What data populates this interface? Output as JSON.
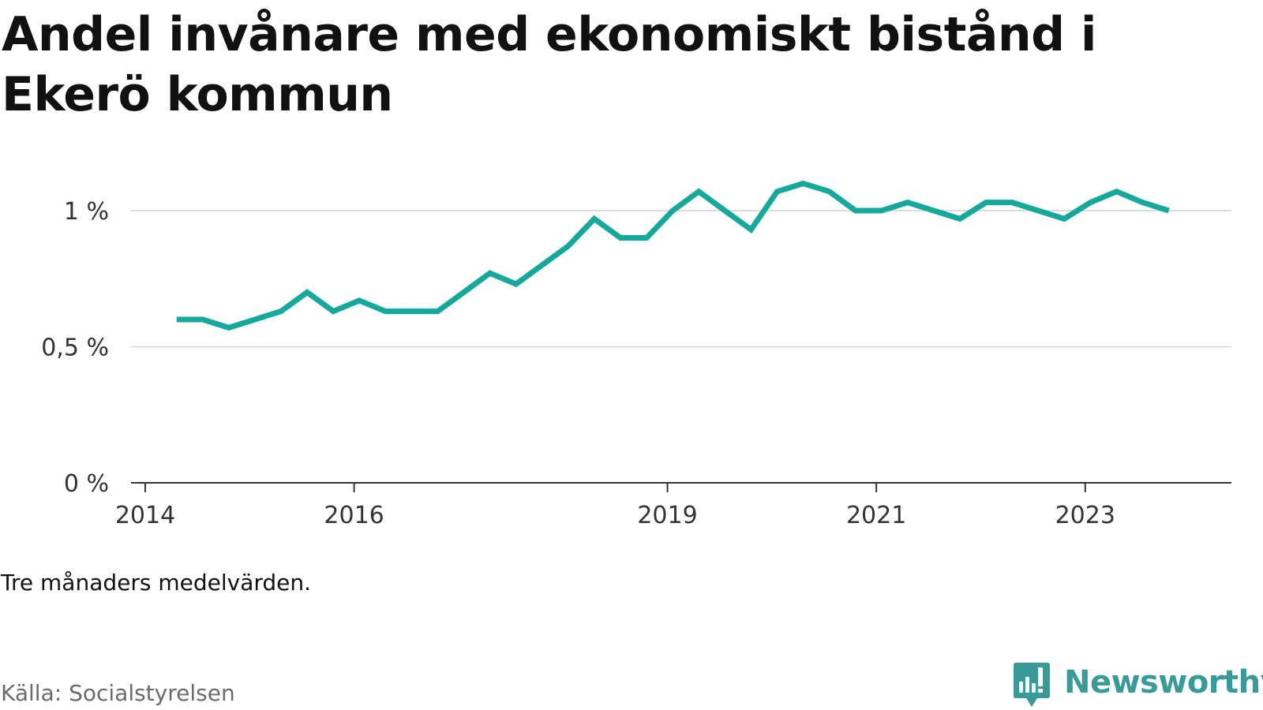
{
  "title": "Andel invånare med ekonomiskt bistånd i Ekerö kommun",
  "note": "Tre månaders medelvärden.",
  "source": "Källa: Socialstyrelsen",
  "brand": {
    "name": "Newsworthy",
    "icon": "newsworthy-logo-icon",
    "color": "#3a9a98"
  },
  "colors": {
    "line": "#16a89b",
    "grid": "#dddddd",
    "axis": "#333333"
  },
  "chart_data": {
    "type": "line",
    "title": "Andel invånare med ekonomiskt bistånd i Ekerö kommun",
    "xlabel": "",
    "ylabel": "",
    "ylim": [
      0,
      1.0
    ],
    "yticks": [
      {
        "value": 0,
        "label": "0 %"
      },
      {
        "value": 0.5,
        "label": "0,5 %"
      },
      {
        "value": 1,
        "label": "1 %"
      }
    ],
    "xlim": [
      2014.0,
      2024.4
    ],
    "xticks": [
      {
        "value": 2014,
        "label": "2014"
      },
      {
        "value": 2016,
        "label": "2016"
      },
      {
        "value": 2019,
        "label": "2019"
      },
      {
        "value": 2021,
        "label": "2021"
      },
      {
        "value": 2023,
        "label": "2023"
      }
    ],
    "grid": true,
    "series": [
      {
        "x": [
          2014.3,
          2014.55,
          2014.8,
          2015.05,
          2015.3,
          2015.55,
          2015.8,
          2016.05,
          2016.3,
          2016.55,
          2016.8,
          2017.05,
          2017.3,
          2017.55,
          2017.8,
          2018.05,
          2018.3,
          2018.55,
          2018.8,
          2019.05,
          2019.3,
          2019.55,
          2019.8,
          2020.05,
          2020.3,
          2020.55,
          2020.8,
          2021.05,
          2021.3,
          2021.55,
          2021.8,
          2022.05,
          2022.3,
          2022.55,
          2022.8,
          2023.05,
          2023.3,
          2023.55,
          2023.8
        ],
        "values": [
          0.6,
          0.6,
          0.57,
          0.6,
          0.63,
          0.7,
          0.63,
          0.67,
          0.63,
          0.63,
          0.63,
          0.7,
          0.77,
          0.73,
          0.8,
          0.87,
          0.97,
          0.9,
          0.9,
          1.0,
          1.07,
          1.0,
          0.93,
          1.07,
          1.1,
          1.07,
          1.0,
          1.0,
          1.03,
          1.0,
          0.97,
          1.03,
          1.03,
          1.0,
          0.97,
          1.03,
          1.07,
          1.03,
          1.0
        ]
      }
    ]
  }
}
